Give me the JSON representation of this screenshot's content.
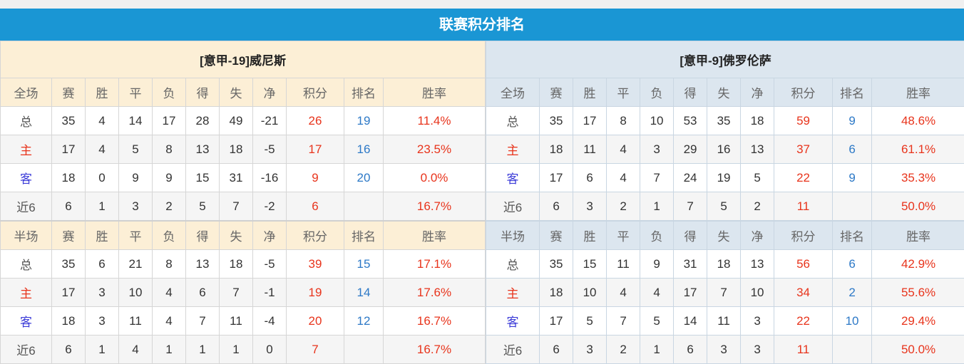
{
  "title": "联赛积分排名",
  "columns": [
    "赛",
    "胜",
    "平",
    "负",
    "得",
    "失",
    "净",
    "积分",
    "排名",
    "胜率"
  ],
  "section_labels": {
    "full": "全场",
    "half": "半场"
  },
  "teams": [
    {
      "name": "[意甲-19]威尼斯",
      "full": [
        [
          "总",
          "35",
          "4",
          "14",
          "17",
          "28",
          "49",
          "-21",
          "26",
          "19",
          "11.4%"
        ],
        [
          "主",
          "17",
          "4",
          "5",
          "8",
          "13",
          "18",
          "-5",
          "17",
          "16",
          "23.5%"
        ],
        [
          "客",
          "18",
          "0",
          "9",
          "9",
          "15",
          "31",
          "-16",
          "9",
          "20",
          "0.0%"
        ],
        [
          "近6",
          "6",
          "1",
          "3",
          "2",
          "5",
          "7",
          "-2",
          "6",
          "",
          "16.7%"
        ]
      ],
      "half": [
        [
          "总",
          "35",
          "6",
          "21",
          "8",
          "13",
          "18",
          "-5",
          "39",
          "15",
          "17.1%"
        ],
        [
          "主",
          "17",
          "3",
          "10",
          "4",
          "6",
          "7",
          "-1",
          "19",
          "14",
          "17.6%"
        ],
        [
          "客",
          "18",
          "3",
          "11",
          "4",
          "7",
          "11",
          "-4",
          "20",
          "12",
          "16.7%"
        ],
        [
          "近6",
          "6",
          "1",
          "4",
          "1",
          "1",
          "1",
          "0",
          "7",
          "",
          "16.7%"
        ]
      ]
    },
    {
      "name": "[意甲-9]佛罗伦萨",
      "full": [
        [
          "总",
          "35",
          "17",
          "8",
          "10",
          "53",
          "35",
          "18",
          "59",
          "9",
          "48.6%"
        ],
        [
          "主",
          "18",
          "11",
          "4",
          "3",
          "29",
          "16",
          "13",
          "37",
          "6",
          "61.1%"
        ],
        [
          "客",
          "17",
          "6",
          "4",
          "7",
          "24",
          "19",
          "5",
          "22",
          "9",
          "35.3%"
        ],
        [
          "近6",
          "6",
          "3",
          "2",
          "1",
          "7",
          "5",
          "2",
          "11",
          "",
          "50.0%"
        ]
      ],
      "half": [
        [
          "总",
          "35",
          "15",
          "11",
          "9",
          "31",
          "18",
          "13",
          "56",
          "6",
          "42.9%"
        ],
        [
          "主",
          "18",
          "10",
          "4",
          "4",
          "17",
          "7",
          "10",
          "34",
          "2",
          "55.6%"
        ],
        [
          "客",
          "17",
          "5",
          "7",
          "5",
          "14",
          "11",
          "3",
          "22",
          "10",
          "29.4%"
        ],
        [
          "近6",
          "6",
          "3",
          "2",
          "1",
          "6",
          "3",
          "3",
          "11",
          "",
          "50.0%"
        ]
      ]
    }
  ],
  "colors": {
    "header_blue": "#1a96d4",
    "points_red": "#e8341c",
    "rank_blue": "#2d79c7",
    "away_label": "#3b3bd8"
  }
}
